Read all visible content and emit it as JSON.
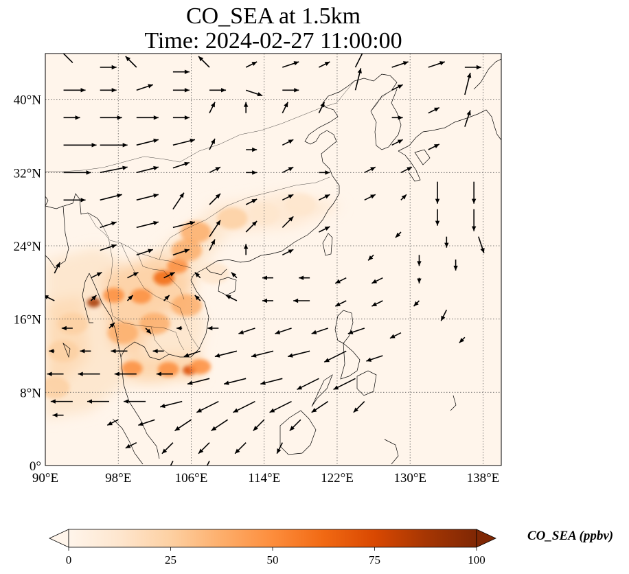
{
  "title": {
    "line1": "CO_SEA at 1.5km",
    "line2": "Time: 2024-02-27 11:00:00"
  },
  "map": {
    "lon_range": [
      90,
      140
    ],
    "lat_range": [
      0,
      45
    ],
    "lat_ticks": [
      {
        "value": 0,
        "label": "0°"
      },
      {
        "value": 8,
        "label": "8°N"
      },
      {
        "value": 16,
        "label": "16°N"
      },
      {
        "value": 24,
        "label": "24°N"
      },
      {
        "value": 32,
        "label": "32°N"
      },
      {
        "value": 40,
        "label": "40°N"
      }
    ],
    "lon_ticks": [
      {
        "value": 90,
        "label": "90°E"
      },
      {
        "value": 98,
        "label": "98°E"
      },
      {
        "value": 106,
        "label": "106°E"
      },
      {
        "value": 114,
        "label": "114°E"
      },
      {
        "value": 122,
        "label": "122°E"
      },
      {
        "value": 130,
        "label": "130°E"
      },
      {
        "value": 138,
        "label": "138°E"
      }
    ],
    "gridlines": true,
    "hotspots": [
      {
        "lon": 95.3,
        "lat": 17.8,
        "value": 85
      },
      {
        "lon": 97.5,
        "lat": 18.6,
        "value": 45
      },
      {
        "lon": 100.5,
        "lat": 18.5,
        "value": 55
      },
      {
        "lon": 103.0,
        "lat": 20.5,
        "value": 60
      },
      {
        "lon": 104.5,
        "lat": 21.8,
        "value": 55
      },
      {
        "lon": 105.5,
        "lat": 23.5,
        "value": 40
      },
      {
        "lon": 106.5,
        "lat": 25.5,
        "value": 40
      },
      {
        "lon": 105.5,
        "lat": 17.5,
        "value": 40
      },
      {
        "lon": 102.0,
        "lat": 15.5,
        "value": 35
      },
      {
        "lon": 103.5,
        "lat": 10.5,
        "value": 55
      },
      {
        "lon": 105.8,
        "lat": 10.4,
        "value": 80
      },
      {
        "lon": 107.0,
        "lat": 10.8,
        "value": 50
      },
      {
        "lon": 99.5,
        "lat": 10.6,
        "value": 45
      },
      {
        "lon": 93.0,
        "lat": 15.5,
        "value": 25
      },
      {
        "lon": 92.0,
        "lat": 12.5,
        "value": 20
      },
      {
        "lon": 91.0,
        "lat": 8.5,
        "value": 20
      },
      {
        "lon": 98.5,
        "lat": 14.5,
        "value": 35
      },
      {
        "lon": 110.5,
        "lat": 27.0,
        "value": 20
      },
      {
        "lon": 114.0,
        "lat": 27.5,
        "value": 15
      },
      {
        "lon": 108.5,
        "lat": 21.0,
        "value": 15
      },
      {
        "lon": 118.0,
        "lat": 28.5,
        "value": 10
      }
    ],
    "wind": [
      {
        "lon": 93,
        "lat": 44,
        "u": -3,
        "v": 3
      },
      {
        "lon": 96,
        "lat": 43.5,
        "u": 3,
        "v": 0
      },
      {
        "lon": 100,
        "lat": 43.5,
        "u": -2,
        "v": 2
      },
      {
        "lon": 104,
        "lat": 43,
        "u": 3,
        "v": 0
      },
      {
        "lon": 108,
        "lat": 43.5,
        "u": -2,
        "v": 2
      },
      {
        "lon": 112,
        "lat": 43.5,
        "u": 2,
        "v": 1
      },
      {
        "lon": 116,
        "lat": 43.5,
        "u": 3,
        "v": 1
      },
      {
        "lon": 120,
        "lat": 43.5,
        "u": 2,
        "v": 1
      },
      {
        "lon": 124,
        "lat": 43.5,
        "u": 2,
        "v": 4
      },
      {
        "lon": 128,
        "lat": 43.5,
        "u": 3,
        "v": 1
      },
      {
        "lon": 132,
        "lat": 43.5,
        "u": 3,
        "v": 1
      },
      {
        "lon": 136,
        "lat": 43.5,
        "u": 3,
        "v": 0
      },
      {
        "lon": 92,
        "lat": 41,
        "u": 4,
        "v": 0
      },
      {
        "lon": 96,
        "lat": 41,
        "u": 3,
        "v": 0
      },
      {
        "lon": 100,
        "lat": 41,
        "u": 3,
        "v": 1
      },
      {
        "lon": 104,
        "lat": 41,
        "u": 3,
        "v": 0
      },
      {
        "lon": 108,
        "lat": 41,
        "u": 3,
        "v": 0
      },
      {
        "lon": 112,
        "lat": 41,
        "u": 3,
        "v": -1
      },
      {
        "lon": 116,
        "lat": 41,
        "u": 3,
        "v": 0
      },
      {
        "lon": 124,
        "lat": 41,
        "u": 1,
        "v": 4
      },
      {
        "lon": 128,
        "lat": 41,
        "u": 2,
        "v": 1
      },
      {
        "lon": 136,
        "lat": 40.5,
        "u": 1,
        "v": 4
      },
      {
        "lon": 92,
        "lat": 38,
        "u": 3,
        "v": 0
      },
      {
        "lon": 96,
        "lat": 38,
        "u": 4,
        "v": 0
      },
      {
        "lon": 100,
        "lat": 38,
        "u": 4,
        "v": 0
      },
      {
        "lon": 104,
        "lat": 38,
        "u": 3,
        "v": 0
      },
      {
        "lon": 108,
        "lat": 38.5,
        "u": 1,
        "v": 2
      },
      {
        "lon": 112,
        "lat": 38.5,
        "u": 0,
        "v": 2
      },
      {
        "lon": 116,
        "lat": 38.5,
        "u": 1,
        "v": 2
      },
      {
        "lon": 120,
        "lat": 38.5,
        "u": 1,
        "v": 2
      },
      {
        "lon": 128,
        "lat": 38,
        "u": 2,
        "v": 0
      },
      {
        "lon": 132,
        "lat": 38.5,
        "u": 2,
        "v": 1
      },
      {
        "lon": 136,
        "lat": 37,
        "u": 1,
        "v": 3
      },
      {
        "lon": 92,
        "lat": 35,
        "u": 6,
        "v": 0
      },
      {
        "lon": 96,
        "lat": 35,
        "u": 5,
        "v": 0
      },
      {
        "lon": 100,
        "lat": 35,
        "u": 4,
        "v": 1
      },
      {
        "lon": 104,
        "lat": 35,
        "u": 4,
        "v": 1
      },
      {
        "lon": 108,
        "lat": 34.5,
        "u": 1,
        "v": 2
      },
      {
        "lon": 112,
        "lat": 34.5,
        "u": 2,
        "v": 0
      },
      {
        "lon": 116,
        "lat": 35,
        "u": 2,
        "v": 1
      },
      {
        "lon": 128,
        "lat": 35,
        "u": 2,
        "v": 1
      },
      {
        "lon": 132,
        "lat": 34.5,
        "u": 2,
        "v": 1
      },
      {
        "lon": 92,
        "lat": 32,
        "u": 5,
        "v": 0
      },
      {
        "lon": 96,
        "lat": 32,
        "u": 5,
        "v": 1
      },
      {
        "lon": 100,
        "lat": 32,
        "u": 4,
        "v": 1
      },
      {
        "lon": 104,
        "lat": 32.5,
        "u": 3,
        "v": 1
      },
      {
        "lon": 108,
        "lat": 32,
        "u": 2,
        "v": 1
      },
      {
        "lon": 112,
        "lat": 32,
        "u": 2,
        "v": 0
      },
      {
        "lon": 116,
        "lat": 32,
        "u": 2,
        "v": 1
      },
      {
        "lon": 120,
        "lat": 32,
        "u": 2,
        "v": 0
      },
      {
        "lon": 125,
        "lat": 32,
        "u": 2,
        "v": 1
      },
      {
        "lon": 129,
        "lat": 32,
        "u": 2,
        "v": 1
      },
      {
        "lon": 133,
        "lat": 31,
        "u": 0,
        "v": -4
      },
      {
        "lon": 137,
        "lat": 31,
        "u": 0,
        "v": -4
      },
      {
        "lon": 92,
        "lat": 29,
        "u": 4,
        "v": 0
      },
      {
        "lon": 96,
        "lat": 29,
        "u": 4,
        "v": 1
      },
      {
        "lon": 100,
        "lat": 29,
        "u": 4,
        "v": 1
      },
      {
        "lon": 104,
        "lat": 28,
        "u": 2,
        "v": 3
      },
      {
        "lon": 108,
        "lat": 28.5,
        "u": 2,
        "v": 2
      },
      {
        "lon": 112,
        "lat": 28.5,
        "u": 2,
        "v": 1
      },
      {
        "lon": 116,
        "lat": 29,
        "u": 2,
        "v": 1
      },
      {
        "lon": 120,
        "lat": 29,
        "u": 2,
        "v": 1
      },
      {
        "lon": 125,
        "lat": 29,
        "u": 2,
        "v": 1
      },
      {
        "lon": 129,
        "lat": 29,
        "u": 1,
        "v": 1
      },
      {
        "lon": 133,
        "lat": 28,
        "u": 0,
        "v": -3
      },
      {
        "lon": 137,
        "lat": 28,
        "u": 0,
        "v": -4
      },
      {
        "lon": 96,
        "lat": 26,
        "u": 3,
        "v": 1
      },
      {
        "lon": 100,
        "lat": 26,
        "u": 4,
        "v": 1
      },
      {
        "lon": 104,
        "lat": 26,
        "u": 4,
        "v": 1
      },
      {
        "lon": 108,
        "lat": 25,
        "u": 2,
        "v": 3
      },
      {
        "lon": 112,
        "lat": 25.5,
        "u": 2,
        "v": 2
      },
      {
        "lon": 116,
        "lat": 26,
        "u": 2,
        "v": 2
      },
      {
        "lon": 120,
        "lat": 25.5,
        "u": 2,
        "v": 1
      },
      {
        "lon": 129,
        "lat": 25.5,
        "u": -1,
        "v": -1
      },
      {
        "lon": 134,
        "lat": 25,
        "u": 0,
        "v": -2
      },
      {
        "lon": 137.5,
        "lat": 25,
        "u": 1,
        "v": -3
      },
      {
        "lon": 96,
        "lat": 23.5,
        "u": 3,
        "v": 1
      },
      {
        "lon": 100,
        "lat": 23,
        "u": 3,
        "v": 1
      },
      {
        "lon": 104,
        "lat": 23,
        "u": 3,
        "v": 1
      },
      {
        "lon": 108,
        "lat": 23.5,
        "u": 1,
        "v": 2
      },
      {
        "lon": 112,
        "lat": 23,
        "u": 0,
        "v": 2
      },
      {
        "lon": 116,
        "lat": 23,
        "u": 2,
        "v": 1
      },
      {
        "lon": 126,
        "lat": 23,
        "u": -1,
        "v": -1
      },
      {
        "lon": 131,
        "lat": 23,
        "u": 0,
        "v": -2
      },
      {
        "lon": 135,
        "lat": 22.5,
        "u": 0,
        "v": -2
      },
      {
        "lon": 91,
        "lat": 21,
        "u": 1,
        "v": 2
      },
      {
        "lon": 95,
        "lat": 20.5,
        "u": 2,
        "v": 1
      },
      {
        "lon": 99,
        "lat": 20.5,
        "u": 2,
        "v": 1
      },
      {
        "lon": 103,
        "lat": 20.5,
        "u": 2,
        "v": 1
      },
      {
        "lon": 107,
        "lat": 20.5,
        "u": -1,
        "v": 1
      },
      {
        "lon": 111,
        "lat": 20.5,
        "u": -1,
        "v": 1
      },
      {
        "lon": 115,
        "lat": 20.5,
        "u": -2,
        "v": 0
      },
      {
        "lon": 119,
        "lat": 20.5,
        "u": -2,
        "v": 0
      },
      {
        "lon": 123,
        "lat": 20.5,
        "u": -2,
        "v": -1
      },
      {
        "lon": 127,
        "lat": 20.5,
        "u": -2,
        "v": -1
      },
      {
        "lon": 131,
        "lat": 20.5,
        "u": 0,
        "v": -1
      },
      {
        "lon": 91,
        "lat": 18,
        "u": -2,
        "v": 1
      },
      {
        "lon": 95,
        "lat": 18,
        "u": 1,
        "v": 1
      },
      {
        "lon": 99,
        "lat": 18,
        "u": 1,
        "v": 1
      },
      {
        "lon": 103,
        "lat": 18,
        "u": 1,
        "v": 1
      },
      {
        "lon": 107,
        "lat": 18,
        "u": -1,
        "v": 1
      },
      {
        "lon": 111,
        "lat": 18,
        "u": -2,
        "v": 1
      },
      {
        "lon": 115,
        "lat": 18,
        "u": -2,
        "v": 0
      },
      {
        "lon": 119,
        "lat": 18,
        "u": -3,
        "v": 0
      },
      {
        "lon": 123,
        "lat": 18,
        "u": -2,
        "v": -1
      },
      {
        "lon": 127,
        "lat": 18,
        "u": -2,
        "v": -1
      },
      {
        "lon": 131,
        "lat": 18,
        "u": -1,
        "v": -1
      },
      {
        "lon": 134,
        "lat": 17,
        "u": -1,
        "v": -2
      },
      {
        "lon": 93,
        "lat": 15,
        "u": -2,
        "v": 0
      },
      {
        "lon": 97,
        "lat": 15,
        "u": 1,
        "v": 1
      },
      {
        "lon": 101,
        "lat": 15,
        "u": 1,
        "v": -1
      },
      {
        "lon": 105,
        "lat": 15,
        "u": -1,
        "v": 0
      },
      {
        "lon": 109,
        "lat": 15,
        "u": -2,
        "v": 0
      },
      {
        "lon": 113,
        "lat": 15,
        "u": -3,
        "v": -1
      },
      {
        "lon": 117,
        "lat": 15,
        "u": -3,
        "v": -1
      },
      {
        "lon": 121,
        "lat": 15,
        "u": -3,
        "v": -1
      },
      {
        "lon": 125,
        "lat": 15,
        "u": -3,
        "v": -1
      },
      {
        "lon": 129,
        "lat": 14.5,
        "u": -2,
        "v": -1
      },
      {
        "lon": 136,
        "lat": 14,
        "u": -1,
        "v": -1
      },
      {
        "lon": 91,
        "lat": 12.5,
        "u": -1,
        "v": 0
      },
      {
        "lon": 95,
        "lat": 12.5,
        "u": -2,
        "v": 0
      },
      {
        "lon": 99,
        "lat": 12.5,
        "u": -3,
        "v": 0
      },
      {
        "lon": 103,
        "lat": 12.5,
        "u": -2,
        "v": 0
      },
      {
        "lon": 107,
        "lat": 12.5,
        "u": -3,
        "v": -1
      },
      {
        "lon": 111,
        "lat": 12.5,
        "u": -4,
        "v": -1
      },
      {
        "lon": 115,
        "lat": 12.5,
        "u": -4,
        "v": -1
      },
      {
        "lon": 119,
        "lat": 12.5,
        "u": -4,
        "v": -1
      },
      {
        "lon": 123,
        "lat": 12.5,
        "u": -4,
        "v": -2
      },
      {
        "lon": 127,
        "lat": 12,
        "u": -3,
        "v": -1
      },
      {
        "lon": 92,
        "lat": 10,
        "u": -3,
        "v": 0
      },
      {
        "lon": 96,
        "lat": 10,
        "u": -4,
        "v": 0
      },
      {
        "lon": 100,
        "lat": 10,
        "u": -4,
        "v": 0
      },
      {
        "lon": 104,
        "lat": 10,
        "u": -3,
        "v": 0
      },
      {
        "lon": 108,
        "lat": 9.5,
        "u": -4,
        "v": -1
      },
      {
        "lon": 112,
        "lat": 9.5,
        "u": -4,
        "v": -1
      },
      {
        "lon": 116,
        "lat": 9.5,
        "u": -4,
        "v": -1
      },
      {
        "lon": 120,
        "lat": 9.5,
        "u": -4,
        "v": -2
      },
      {
        "lon": 124,
        "lat": 9.5,
        "u": -4,
        "v": -2
      },
      {
        "lon": 93,
        "lat": 7,
        "u": -4,
        "v": 0
      },
      {
        "lon": 97,
        "lat": 7,
        "u": -4,
        "v": 0
      },
      {
        "lon": 101,
        "lat": 7,
        "u": -4,
        "v": 0
      },
      {
        "lon": 105,
        "lat": 7,
        "u": -4,
        "v": -1
      },
      {
        "lon": 109,
        "lat": 7,
        "u": -4,
        "v": -2
      },
      {
        "lon": 113,
        "lat": 7,
        "u": -4,
        "v": -2
      },
      {
        "lon": 117,
        "lat": 7,
        "u": -4,
        "v": -2
      },
      {
        "lon": 121,
        "lat": 7,
        "u": -3,
        "v": -2
      },
      {
        "lon": 125,
        "lat": 7,
        "u": -2,
        "v": -2
      },
      {
        "lon": 92,
        "lat": 5.5,
        "u": -2,
        "v": 0
      },
      {
        "lon": 98,
        "lat": 5,
        "u": -2,
        "v": -1
      },
      {
        "lon": 102,
        "lat": 5,
        "u": -3,
        "v": -1
      },
      {
        "lon": 106,
        "lat": 5,
        "u": -3,
        "v": -2
      },
      {
        "lon": 110,
        "lat": 5,
        "u": -3,
        "v": -2
      },
      {
        "lon": 114,
        "lat": 5,
        "u": -2,
        "v": -2
      },
      {
        "lon": 118,
        "lat": 5,
        "u": -2,
        "v": -2
      },
      {
        "lon": 100,
        "lat": 2.5,
        "u": -2,
        "v": -1
      },
      {
        "lon": 104,
        "lat": 2.5,
        "u": -2,
        "v": -2
      },
      {
        "lon": 108,
        "lat": 2.5,
        "u": -2,
        "v": -2
      },
      {
        "lon": 112,
        "lat": 2.5,
        "u": -2,
        "v": -2
      },
      {
        "lon": 116,
        "lat": 2.5,
        "u": -1,
        "v": -2
      },
      {
        "lon": 104,
        "lat": 0.5,
        "u": -1,
        "v": -2
      },
      {
        "lon": 108,
        "lat": 0.5,
        "u": -1,
        "v": -2
      }
    ]
  },
  "colorbar": {
    "label": "CO_SEA (ppbv)",
    "min": 0,
    "max": 100,
    "ticks": [
      "0",
      "25",
      "50",
      "75",
      "100"
    ],
    "extend": "both",
    "colors": [
      "#fff5eb",
      "#fee6ce",
      "#fdd0a2",
      "#fdae6b",
      "#fd8d3c",
      "#f16913",
      "#d94801",
      "#a63603",
      "#7f2704"
    ]
  }
}
